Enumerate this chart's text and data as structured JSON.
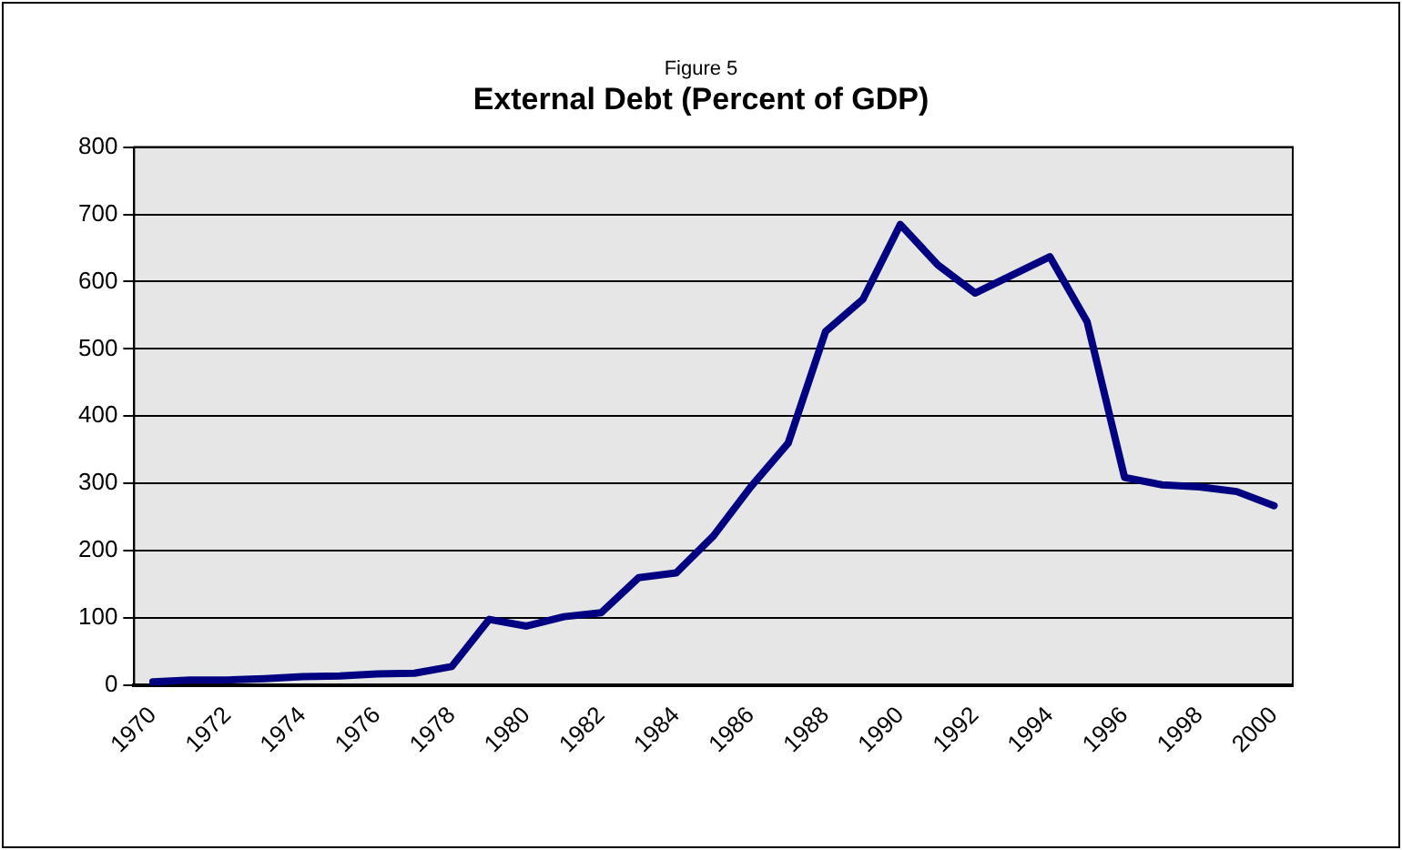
{
  "chart_data": {
    "type": "line",
    "subtitle": "Figure 5",
    "title": "External Debt (Percent of GDP)",
    "categories": [
      "1970",
      null,
      "1972",
      null,
      "1974",
      null,
      "1976",
      null,
      "1978",
      null,
      "1980",
      null,
      "1982",
      null,
      "1984",
      null,
      "1986",
      null,
      "1988",
      null,
      "1990",
      null,
      "1992",
      null,
      "1994",
      null,
      "1996",
      null,
      "1998",
      null,
      "2000"
    ],
    "series": [
      {
        "color": "#000080",
        "values": [
          5,
          8,
          8,
          10,
          13,
          14,
          17,
          18,
          28,
          98,
          88,
          102,
          108,
          160,
          167,
          222,
          295,
          360,
          526,
          574,
          685,
          625,
          583,
          610,
          637,
          540,
          309,
          298,
          295,
          288,
          267
        ]
      }
    ],
    "ylim": [
      0,
      800
    ],
    "yticks": [
      0,
      100,
      200,
      300,
      400,
      500,
      600,
      700,
      800
    ],
    "grid": "y",
    "legend": false,
    "marker": "none",
    "line_style": "solid"
  }
}
